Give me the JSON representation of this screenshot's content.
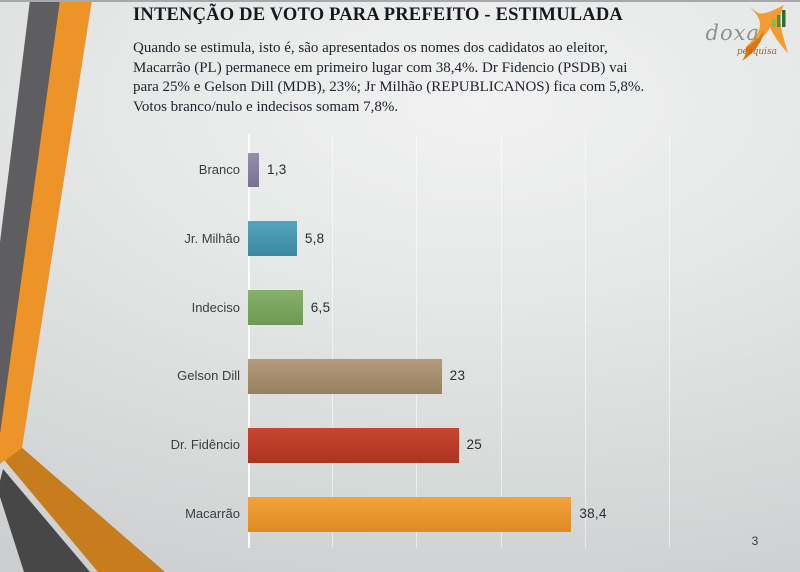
{
  "slide": {
    "title": "INTENÇÃO DE VOTO PARA PREFEITO - ESTIMULADA",
    "intro_text": "Quando se estimula, isto é, são apresentados os nomes dos cadidatos ao eleitor,\nMacarrão (PL) permanece em primeiro lugar com 38,4%. Dr Fidencio (PSDB) vai\npara 25% e Gelson Dill (MDB), 23%; Jr Milhão (REPUBLICANOS) fica com 5,8%.\nVotos branco/nulo e indecisos somam 7,8%.",
    "page_number": "3"
  },
  "logo": {
    "brand": "doxa",
    "tagline": "pesquisa",
    "icon": "doxa-x-ribbon-with-mini-bar-chart",
    "colors": {
      "brand_text": "#8f9092",
      "tagline_text": "#a8611c",
      "ribbon_light": "#f39c34",
      "ribbon_dark": "#d97716",
      "mini_bars": [
        "#8ab54a",
        "#4e8f3a",
        "#2f6b33"
      ]
    }
  },
  "decoration": {
    "description": "diagonal ribbon stripes on left edge, folding at lower-left",
    "colors": {
      "upper_gray_stripe": "#5e5e60",
      "upper_orange_stripe": "#ed9429",
      "lower_orange_band": "#c77c1e",
      "lower_gray_band": "#474748"
    }
  },
  "chart_data": {
    "type": "bar",
    "orientation": "horizontal",
    "title": "",
    "xlabel": "",
    "ylabel": "",
    "categories": [
      "Branco",
      "Jr. Milhão",
      "Indeciso",
      "Gelson Dill",
      "Dr. Fidêncio",
      "Macarrão"
    ],
    "values": [
      1.3,
      5.8,
      6.5,
      23,
      25,
      38.4
    ],
    "value_labels": [
      "1,3",
      "5,8",
      "6,5",
      "23",
      "25",
      "38,4"
    ],
    "bar_colors_light": [
      "#968da9",
      "#55a5be",
      "#87b06b",
      "#b39b7c",
      "#c9462f",
      "#f2a13c"
    ],
    "bar_colors_dark": [
      "#7b7292",
      "#3a88a2",
      "#6c9a53",
      "#97805f",
      "#ab3322",
      "#e08a1f"
    ],
    "xlim": [
      0,
      55
    ],
    "gridline_interval": 10,
    "grid": true,
    "legend": false
  }
}
